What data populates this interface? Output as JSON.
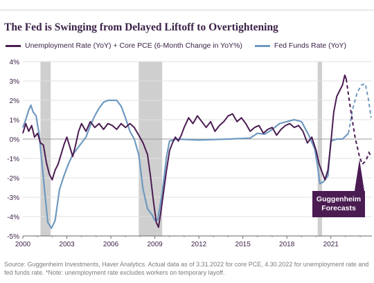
{
  "title": "The Fed is Swinging from Delayed Liftoff to Overtightening",
  "legend": [
    {
      "label": "Unemployment Rate (YoY) + Core PCE (6-Month Change in YoY%)",
      "color": "#4a1c52"
    },
    {
      "label": "Fed Funds Rate (YoY)",
      "color": "#6f99c0"
    }
  ],
  "annotation": [
    "Guggenheim",
    "Forecasts"
  ],
  "source": "Source: Guggenheim Investments, Haver Analytics. Actual data as of 3.31.2022 for core PCE, 4.30.2022 for unemployment rate and fed funds rate. *Note: unemployment rate excludes workers on temporary layoff.",
  "colors": {
    "purple": "#4a1c52",
    "blue": "#6f99c0",
    "recession": "#cfcfcf",
    "annotation_bg": "#4a1c52"
  },
  "chart_data": {
    "type": "line",
    "ylim": [
      -5,
      4
    ],
    "xlim": [
      2000,
      2023.8
    ],
    "y_ticks": [
      "4%",
      "3%",
      "2%",
      "1%",
      "0%",
      "-1%",
      "-2%",
      "-3%",
      "-4%",
      "-5%"
    ],
    "y_tick_values": [
      4,
      3,
      2,
      1,
      0,
      -1,
      -2,
      -3,
      -4,
      -5
    ],
    "x_ticks": [
      "2000",
      "2003",
      "2006",
      "2009",
      "2012",
      "2015",
      "2018",
      "2021"
    ],
    "x_tick_values": [
      2000,
      2003,
      2006,
      2009,
      2012,
      2015,
      2018,
      2021
    ],
    "recessions": [
      [
        2001.2,
        2001.9
      ],
      [
        2007.9,
        2009.5
      ],
      [
        2020.1,
        2020.4
      ]
    ],
    "series": [
      {
        "name": "Unemployment Rate (YoY) + Core PCE (6-Month Change in YoY%)",
        "points": [
          [
            2000.0,
            0.3
          ],
          [
            2000.2,
            0.8
          ],
          [
            2000.4,
            0.4
          ],
          [
            2000.6,
            0.7
          ],
          [
            2000.8,
            0.1
          ],
          [
            2001.0,
            0.3
          ],
          [
            2001.2,
            -0.2
          ],
          [
            2001.4,
            -0.3
          ],
          [
            2001.6,
            -1.2
          ],
          [
            2001.8,
            -1.8
          ],
          [
            2002.0,
            -2.1
          ],
          [
            2002.2,
            -1.6
          ],
          [
            2002.4,
            -1.3
          ],
          [
            2002.6,
            -0.8
          ],
          [
            2002.8,
            -0.3
          ],
          [
            2003.0,
            0.1
          ],
          [
            2003.2,
            -0.4
          ],
          [
            2003.4,
            -0.9
          ],
          [
            2003.6,
            -0.3
          ],
          [
            2003.8,
            0.4
          ],
          [
            2004.0,
            0.8
          ],
          [
            2004.3,
            0.4
          ],
          [
            2004.6,
            0.9
          ],
          [
            2004.9,
            0.6
          ],
          [
            2005.2,
            0.8
          ],
          [
            2005.5,
            0.5
          ],
          [
            2005.8,
            0.8
          ],
          [
            2006.1,
            0.7
          ],
          [
            2006.4,
            0.5
          ],
          [
            2006.7,
            0.8
          ],
          [
            2007.0,
            0.6
          ],
          [
            2007.3,
            0.8
          ],
          [
            2007.6,
            0.6
          ],
          [
            2007.9,
            0.2
          ],
          [
            2008.2,
            -0.2
          ],
          [
            2008.5,
            -0.8
          ],
          [
            2008.7,
            -1.9
          ],
          [
            2008.9,
            -3.2
          ],
          [
            2009.1,
            -4.3
          ],
          [
            2009.25,
            -4.55
          ],
          [
            2009.4,
            -3.8
          ],
          [
            2009.6,
            -2.7
          ],
          [
            2009.8,
            -1.6
          ],
          [
            2010.0,
            -0.6
          ],
          [
            2010.2,
            -0.2
          ],
          [
            2010.4,
            0.1
          ],
          [
            2010.6,
            -0.1
          ],
          [
            2010.8,
            0.2
          ],
          [
            2011.0,
            0.6
          ],
          [
            2011.3,
            1.1
          ],
          [
            2011.6,
            0.8
          ],
          [
            2011.9,
            1.2
          ],
          [
            2012.2,
            0.9
          ],
          [
            2012.5,
            0.6
          ],
          [
            2012.8,
            0.9
          ],
          [
            2013.1,
            0.4
          ],
          [
            2013.4,
            0.7
          ],
          [
            2013.7,
            0.9
          ],
          [
            2014.0,
            1.2
          ],
          [
            2014.3,
            1.3
          ],
          [
            2014.6,
            0.9
          ],
          [
            2014.9,
            1.1
          ],
          [
            2015.2,
            0.8
          ],
          [
            2015.5,
            0.4
          ],
          [
            2015.8,
            0.6
          ],
          [
            2016.1,
            0.7
          ],
          [
            2016.4,
            0.3
          ],
          [
            2016.7,
            0.5
          ],
          [
            2017.0,
            0.6
          ],
          [
            2017.3,
            0.2
          ],
          [
            2017.6,
            0.5
          ],
          [
            2017.9,
            0.7
          ],
          [
            2018.2,
            0.8
          ],
          [
            2018.5,
            0.6
          ],
          [
            2018.8,
            0.7
          ],
          [
            2019.1,
            0.4
          ],
          [
            2019.4,
            -0.2
          ],
          [
            2019.7,
            0.1
          ],
          [
            2020.0,
            -0.6
          ],
          [
            2020.2,
            -1.3
          ],
          [
            2020.4,
            -1.7
          ],
          [
            2020.6,
            -2.1
          ],
          [
            2020.8,
            -1.6
          ],
          [
            2021.0,
            -0.2
          ],
          [
            2021.2,
            1.4
          ],
          [
            2021.4,
            2.2
          ],
          [
            2021.6,
            2.5
          ],
          [
            2021.8,
            2.8
          ],
          [
            2021.95,
            3.3
          ],
          [
            2022.05,
            3.1
          ]
        ]
      },
      {
        "name": "Fed Funds Rate (YoY)",
        "points": [
          [
            2000.0,
            0.6
          ],
          [
            2000.2,
            1.0
          ],
          [
            2000.4,
            1.5
          ],
          [
            2000.55,
            1.75
          ],
          [
            2000.7,
            1.4
          ],
          [
            2000.9,
            1.2
          ],
          [
            2001.1,
            0.3
          ],
          [
            2001.3,
            -1.2
          ],
          [
            2001.5,
            -2.8
          ],
          [
            2001.7,
            -4.3
          ],
          [
            2001.95,
            -4.6
          ],
          [
            2002.2,
            -4.2
          ],
          [
            2002.5,
            -2.6
          ],
          [
            2002.8,
            -1.9
          ],
          [
            2003.1,
            -1.3
          ],
          [
            2003.4,
            -0.8
          ],
          [
            2003.7,
            -0.5
          ],
          [
            2004.0,
            -0.2
          ],
          [
            2004.3,
            0.1
          ],
          [
            2004.6,
            0.7
          ],
          [
            2004.9,
            1.2
          ],
          [
            2005.2,
            1.6
          ],
          [
            2005.5,
            1.9
          ],
          [
            2005.8,
            2.0
          ],
          [
            2006.1,
            2.0
          ],
          [
            2006.4,
            2.0
          ],
          [
            2006.7,
            1.7
          ],
          [
            2007.0,
            1.1
          ],
          [
            2007.3,
            0.4
          ],
          [
            2007.6,
            0.0
          ],
          [
            2007.9,
            -0.8
          ],
          [
            2008.2,
            -2.6
          ],
          [
            2008.5,
            -3.6
          ],
          [
            2008.8,
            -3.9
          ],
          [
            2009.0,
            -4.2
          ],
          [
            2009.2,
            -4.15
          ],
          [
            2009.5,
            -2.8
          ],
          [
            2009.8,
            -0.9
          ],
          [
            2010.0,
            -0.1
          ],
          [
            2010.5,
            0.0
          ],
          [
            2012.0,
            -0.05
          ],
          [
            2014.0,
            0.0
          ],
          [
            2015.5,
            0.05
          ],
          [
            2016.0,
            0.3
          ],
          [
            2016.5,
            0.25
          ],
          [
            2017.0,
            0.5
          ],
          [
            2017.5,
            0.8
          ],
          [
            2018.0,
            0.9
          ],
          [
            2018.5,
            1.0
          ],
          [
            2019.0,
            0.9
          ],
          [
            2019.5,
            0.2
          ],
          [
            2019.9,
            -0.5
          ],
          [
            2020.1,
            -1.4
          ],
          [
            2020.25,
            -2.3
          ],
          [
            2020.5,
            -2.2
          ],
          [
            2020.8,
            -1.9
          ],
          [
            2021.0,
            -0.1
          ],
          [
            2021.4,
            0.0
          ],
          [
            2021.8,
            0.0
          ],
          [
            2022.2,
            0.3
          ]
        ]
      }
    ],
    "forecasts": [
      {
        "name": "Unemployment Rate (YoY) + Core PCE (6-Month Change in YoY%)",
        "points": [
          [
            2022.05,
            3.1
          ],
          [
            2022.35,
            1.5
          ],
          [
            2022.65,
            0.1
          ],
          [
            2022.95,
            -0.9
          ],
          [
            2023.15,
            -1.3
          ],
          [
            2023.4,
            -1.1
          ],
          [
            2023.6,
            -0.7
          ],
          [
            2023.75,
            -0.9
          ]
        ]
      },
      {
        "name": "Fed Funds Rate (YoY)",
        "points": [
          [
            2022.2,
            0.3
          ],
          [
            2022.5,
            1.6
          ],
          [
            2022.8,
            2.4
          ],
          [
            2023.1,
            2.8
          ],
          [
            2023.35,
            2.85
          ],
          [
            2023.55,
            2.1
          ],
          [
            2023.75,
            1.1
          ]
        ]
      }
    ]
  }
}
